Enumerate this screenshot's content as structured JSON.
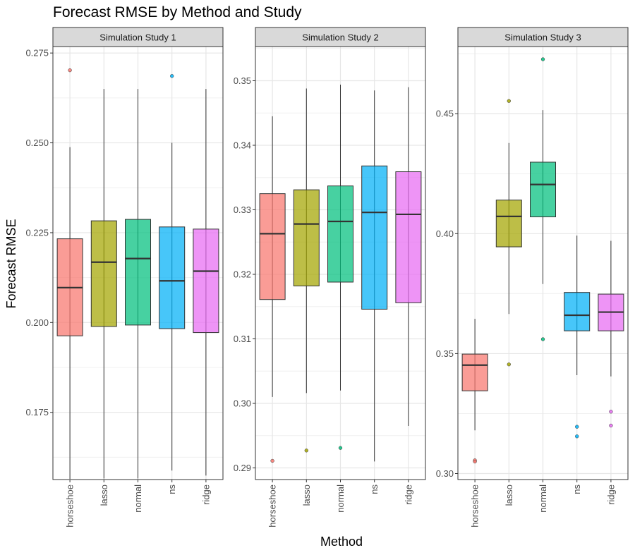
{
  "chart_data": {
    "type": "boxplot",
    "title": "Forecast RMSE by Method and Study",
    "xlabel": "Method",
    "ylabel": "Forecast RMSE",
    "categories": [
      "horseshoe",
      "lasso",
      "normal",
      "ns",
      "ridge"
    ],
    "colors": {
      "horseshoe": "#F8766D",
      "lasso": "#A3A500",
      "normal": "#00BF7D",
      "ns": "#00B0F6",
      "ridge": "#E76BF3"
    },
    "grid": true,
    "legend": "none",
    "panels": [
      {
        "strip": "Simulation Study 1",
        "ylim": [
          0.1563,
          0.2768
        ],
        "yticks": [
          0.175,
          0.2,
          0.225,
          0.25,
          0.275
        ],
        "ytick_labels": [
          "0.175",
          "0.200",
          "0.225",
          "0.250",
          "0.275"
        ],
        "boxes": [
          {
            "method": "horseshoe",
            "lower_whisker": 0.1565,
            "q1": 0.1963,
            "median": 0.2097,
            "q3": 0.2233,
            "upper_whisker": 0.2488,
            "outliers": [
              0.2702
            ]
          },
          {
            "method": "lasso",
            "lower_whisker": 0.1566,
            "q1": 0.1989,
            "median": 0.2168,
            "q3": 0.2283,
            "upper_whisker": 0.265,
            "outliers": []
          },
          {
            "method": "normal",
            "lower_whisker": 0.1566,
            "q1": 0.1993,
            "median": 0.2178,
            "q3": 0.2287,
            "upper_whisker": 0.265,
            "outliers": []
          },
          {
            "method": "ns",
            "lower_whisker": 0.1588,
            "q1": 0.1983,
            "median": 0.2116,
            "q3": 0.2266,
            "upper_whisker": 0.25,
            "outliers": [
              0.2686
            ]
          },
          {
            "method": "ridge",
            "lower_whisker": 0.1574,
            "q1": 0.1972,
            "median": 0.2143,
            "q3": 0.226,
            "upper_whisker": 0.265,
            "outliers": []
          }
        ]
      },
      {
        "strip": "Simulation Study 2",
        "ylim": [
          0.2882,
          0.3553
        ],
        "yticks": [
          0.29,
          0.3,
          0.31,
          0.32,
          0.33,
          0.34,
          0.35
        ],
        "ytick_labels": [
          "0.29",
          "0.30",
          "0.31",
          "0.32",
          "0.33",
          "0.34",
          "0.35"
        ],
        "boxes": [
          {
            "method": "horseshoe",
            "lower_whisker": 0.301,
            "q1": 0.3161,
            "median": 0.3263,
            "q3": 0.3325,
            "upper_whisker": 0.3445,
            "outliers": [
              0.2911
            ]
          },
          {
            "method": "lasso",
            "lower_whisker": 0.3016,
            "q1": 0.3182,
            "median": 0.3278,
            "q3": 0.3331,
            "upper_whisker": 0.3488,
            "outliers": [
              0.2927
            ]
          },
          {
            "method": "normal",
            "lower_whisker": 0.302,
            "q1": 0.3188,
            "median": 0.3282,
            "q3": 0.3337,
            "upper_whisker": 0.3494,
            "outliers": [
              0.2931
            ]
          },
          {
            "method": "ns",
            "lower_whisker": 0.291,
            "q1": 0.3146,
            "median": 0.3296,
            "q3": 0.3368,
            "upper_whisker": 0.3485,
            "outliers": []
          },
          {
            "method": "ridge",
            "lower_whisker": 0.2965,
            "q1": 0.3156,
            "median": 0.3293,
            "q3": 0.3359,
            "upper_whisker": 0.349,
            "outliers": []
          }
        ]
      },
      {
        "strip": "Simulation Study 3",
        "ylim": [
          0.2975,
          0.478
        ],
        "yticks": [
          0.3,
          0.35,
          0.4,
          0.45
        ],
        "ytick_labels": [
          "0.30",
          "0.35",
          "0.40",
          "0.45"
        ],
        "boxes": [
          {
            "method": "horseshoe",
            "lower_whisker": 0.318,
            "q1": 0.3345,
            "median": 0.3452,
            "q3": 0.3498,
            "upper_whisker": 0.3645,
            "outliers": [
              0.3055,
              0.305
            ]
          },
          {
            "method": "lasso",
            "lower_whisker": 0.3665,
            "q1": 0.3945,
            "median": 0.4072,
            "q3": 0.414,
            "upper_whisker": 0.4378,
            "outliers": [
              0.4553,
              0.3455
            ]
          },
          {
            "method": "normal",
            "lower_whisker": 0.379,
            "q1": 0.407,
            "median": 0.4205,
            "q3": 0.4298,
            "upper_whisker": 0.4515,
            "outliers": [
              0.4727,
              0.356
            ]
          },
          {
            "method": "ns",
            "lower_whisker": 0.341,
            "q1": 0.3595,
            "median": 0.366,
            "q3": 0.3755,
            "upper_whisker": 0.3992,
            "outliers": [
              0.3195,
              0.3155
            ]
          },
          {
            "method": "ridge",
            "lower_whisker": 0.3405,
            "q1": 0.3595,
            "median": 0.3673,
            "q3": 0.3748,
            "upper_whisker": 0.397,
            "outliers": [
              0.3258,
              0.32
            ]
          }
        ]
      }
    ]
  }
}
